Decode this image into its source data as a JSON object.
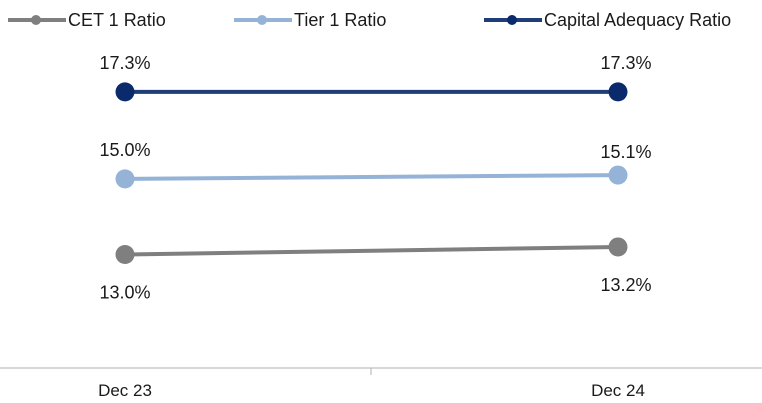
{
  "chart_data": {
    "type": "line",
    "categories": [
      "Dec 23",
      "Dec 24"
    ],
    "series": [
      {
        "name": "CET 1 Ratio",
        "values": [
          13.0,
          13.2
        ],
        "labels": [
          "13.0%",
          "13.2%"
        ],
        "color": "#7f7f7f"
      },
      {
        "name": "Tier 1 Ratio",
        "values": [
          15.0,
          15.1
        ],
        "labels": [
          "15.0%",
          "15.1%"
        ],
        "color": "#95b3d7"
      },
      {
        "name": "Capital Adequacy Ratio",
        "values": [
          17.3,
          17.3
        ],
        "labels": [
          "17.3%",
          "17.3%"
        ],
        "color": "#1f3e78",
        "marker_color": "#0b2a6b"
      }
    ],
    "ylim": [
      10.0,
      19.2
    ],
    "grid": false,
    "legend_position": "top"
  }
}
